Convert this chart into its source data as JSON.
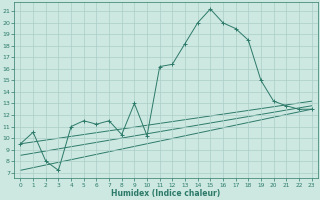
{
  "bg_color": "#cce8e0",
  "grid_color": "#aacfc8",
  "line_color": "#2d7a6a",
  "xlabel": "Humidex (Indice chaleur)",
  "ylim": [
    6.5,
    21.8
  ],
  "xlim": [
    -0.5,
    23.5
  ],
  "yticks": [
    7,
    8,
    9,
    10,
    11,
    12,
    13,
    14,
    15,
    16,
    17,
    18,
    19,
    20,
    21
  ],
  "xticks": [
    0,
    1,
    2,
    3,
    4,
    5,
    6,
    7,
    8,
    9,
    10,
    11,
    12,
    13,
    14,
    15,
    16,
    17,
    18,
    19,
    20,
    21,
    22,
    23
  ],
  "main_x": [
    0,
    1,
    2,
    3,
    4,
    5,
    6,
    7,
    8,
    9,
    10,
    11,
    12,
    13,
    14,
    15,
    16,
    17,
    18,
    19,
    20,
    21,
    22,
    23
  ],
  "main_y": [
    9.5,
    10.5,
    8.0,
    7.2,
    11.0,
    11.5,
    11.2,
    11.5,
    10.3,
    13.0,
    10.2,
    16.2,
    16.4,
    18.2,
    20.0,
    21.2,
    20.0,
    19.5,
    18.5,
    15.0,
    13.2,
    12.8,
    12.5,
    12.5
  ],
  "line1_x": [
    0,
    23
  ],
  "line1_y": [
    9.5,
    13.2
  ],
  "line2_x": [
    0,
    23
  ],
  "line2_y": [
    7.2,
    12.5
  ],
  "line3_x": [
    0,
    23
  ],
  "line3_y": [
    8.5,
    12.8
  ]
}
